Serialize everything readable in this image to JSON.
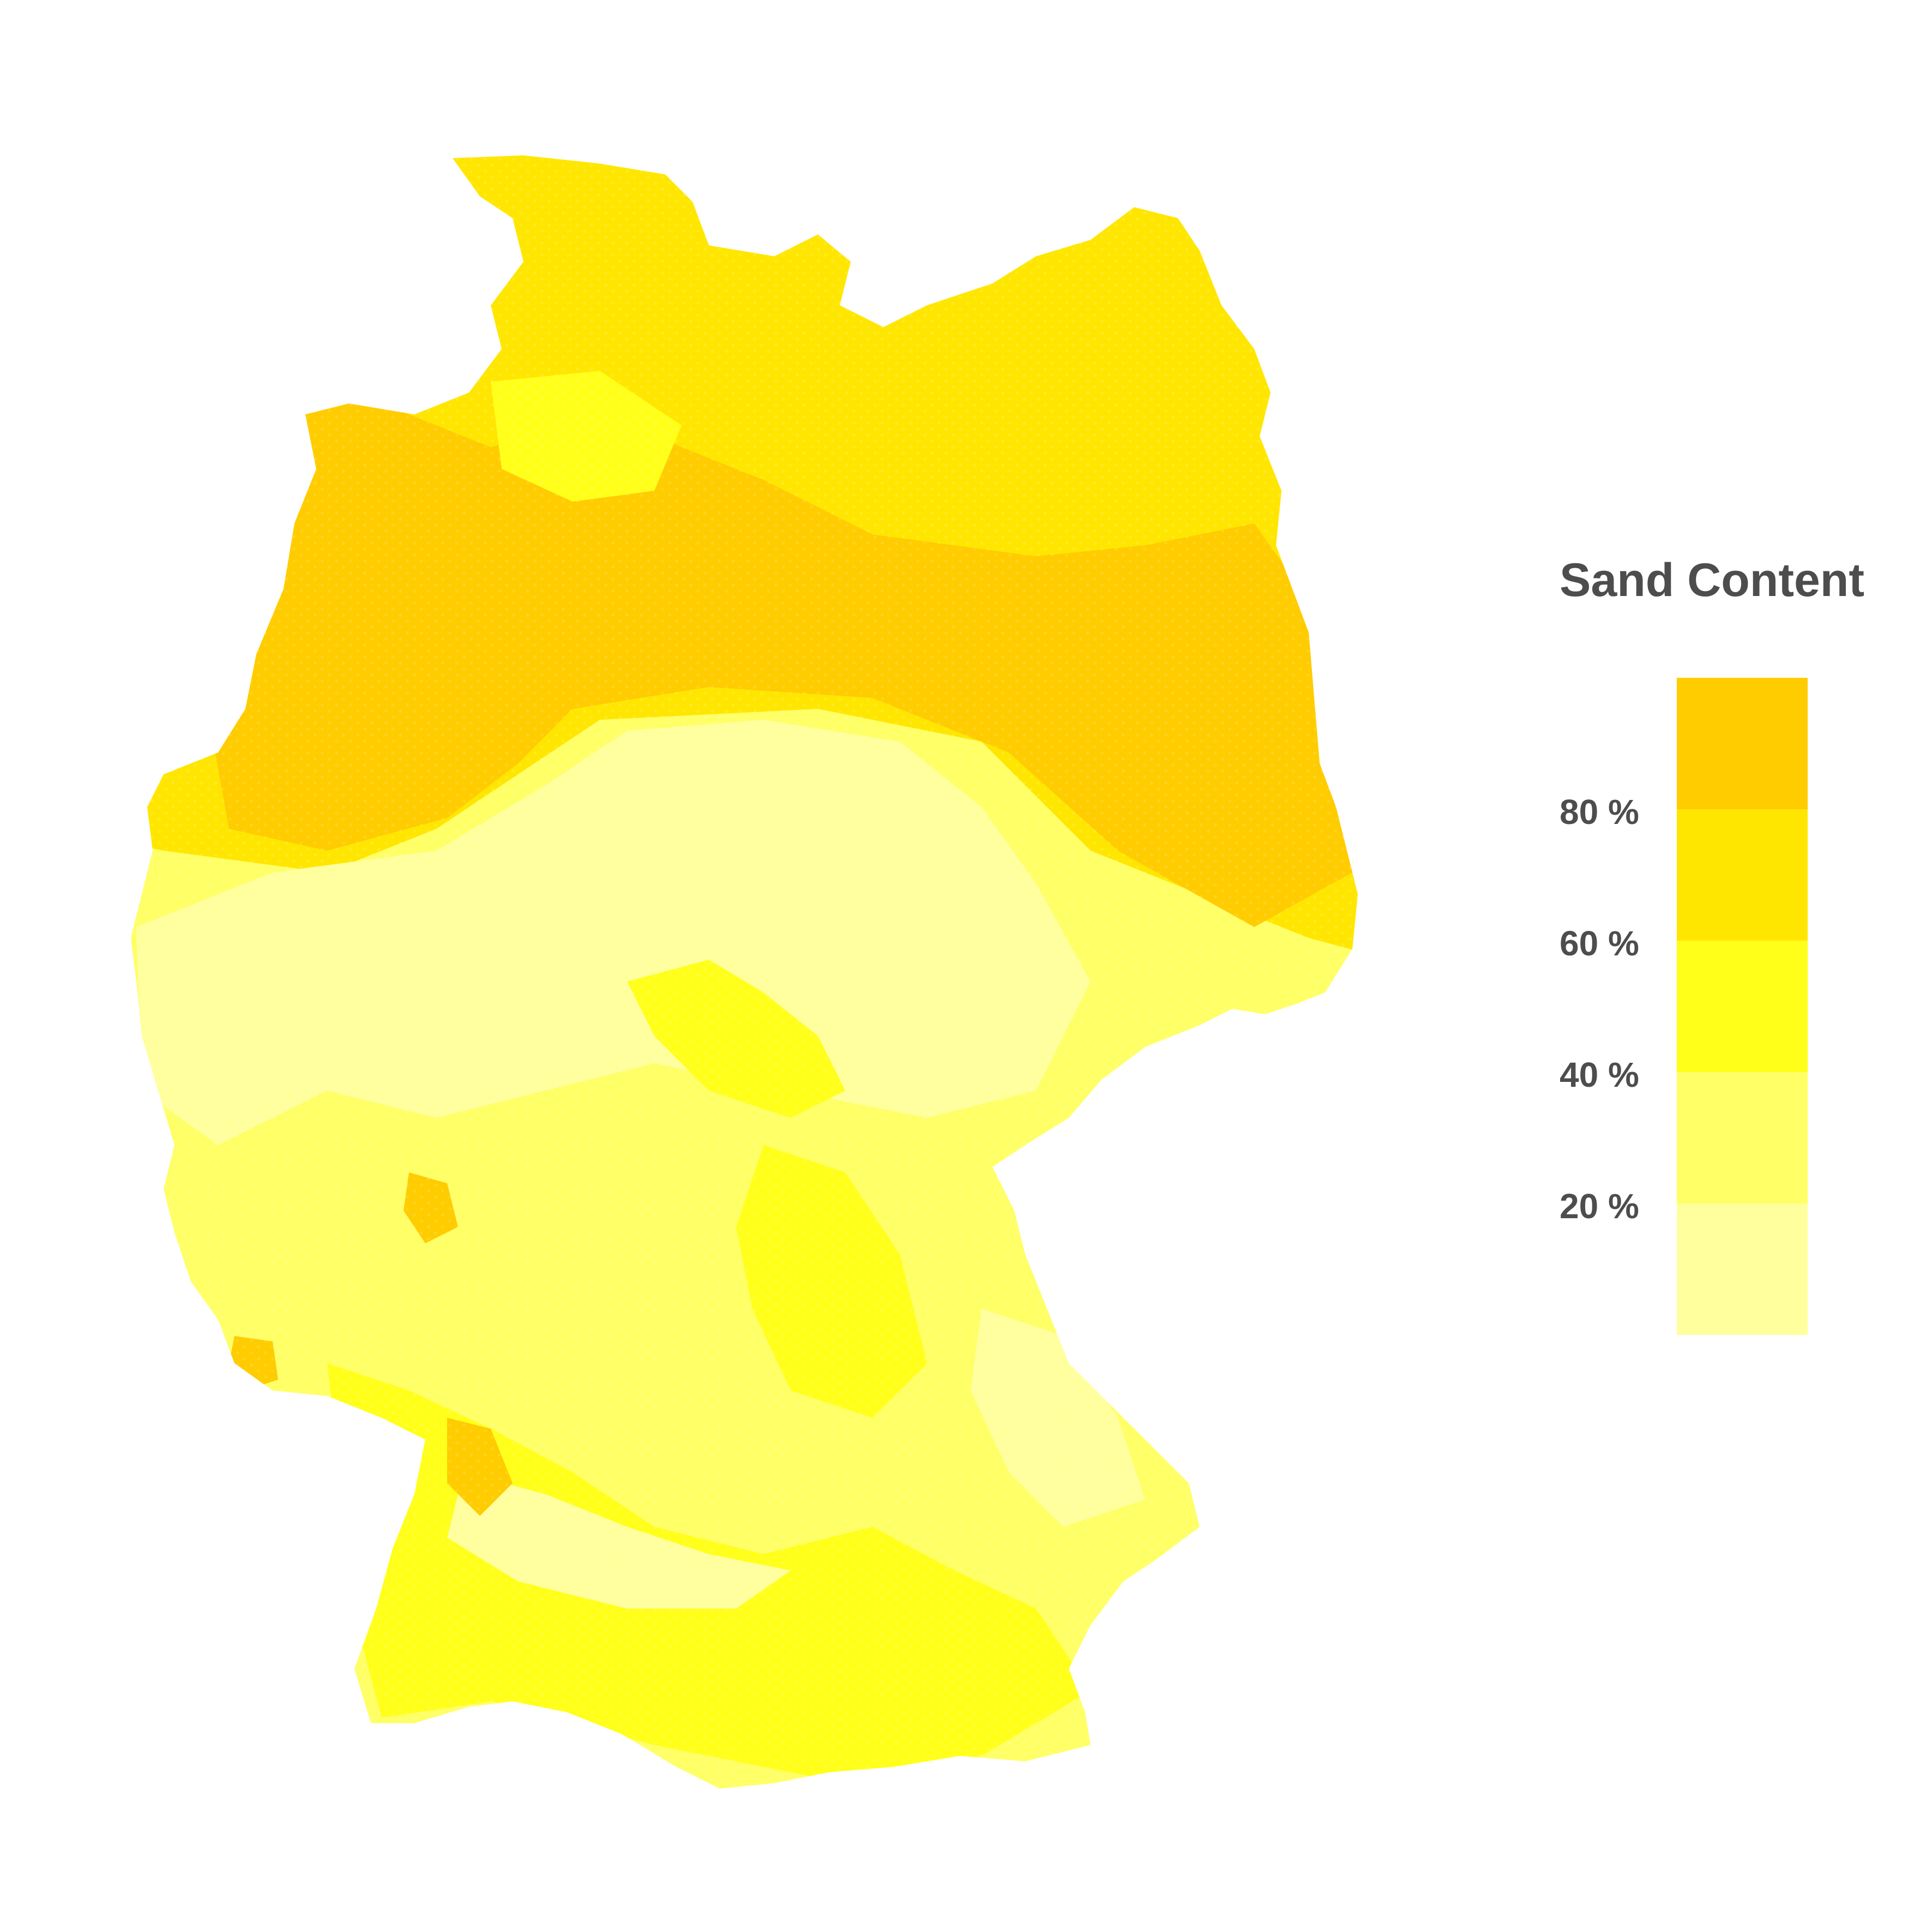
{
  "legend": {
    "title": "Sand Content",
    "ticks": [
      {
        "label": "80 %"
      },
      {
        "label": "60 %"
      },
      {
        "label": "40 %"
      },
      {
        "label": "20 %"
      }
    ],
    "classes": [
      {
        "range": "80-100",
        "color": "#FFCC00"
      },
      {
        "range": "60-80",
        "color": "#FFE600"
      },
      {
        "range": "40-60",
        "color": "#FFFF1A"
      },
      {
        "range": "20-40",
        "color": "#FFFF66"
      },
      {
        "range": "0-20",
        "color": "#FFFF9E"
      }
    ]
  },
  "map": {
    "subject": "Germany",
    "background": "#FFFFFF",
    "regional_pattern": {
      "north_lowlands": "mostly 60-100 %",
      "central_uplands": "mostly 0-40 %",
      "south": "mixed 0-60 %"
    }
  }
}
